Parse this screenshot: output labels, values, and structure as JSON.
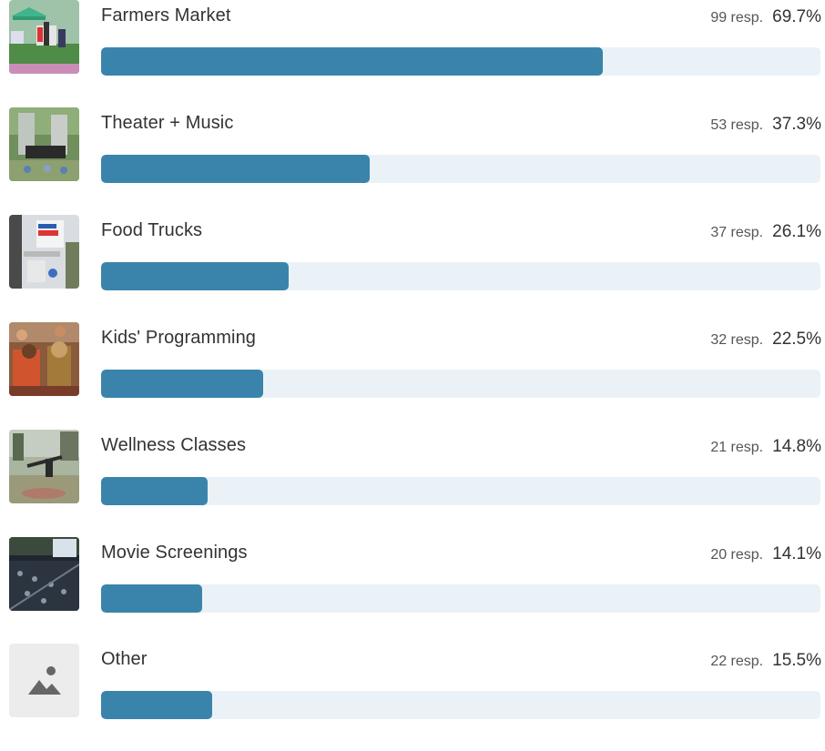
{
  "colors": {
    "bar_fill": "#3a84ac",
    "bar_track": "#ebf2f7",
    "text": "#333333",
    "muted_text": "#555555",
    "placeholder_bg": "#ececec",
    "placeholder_icon": "#666666"
  },
  "results": {
    "items": [
      {
        "label": "Farmers Market",
        "responses": "99 resp.",
        "percent": "69.7%",
        "value": 69.7,
        "thumb_icon": "farmers-market-photo-icon"
      },
      {
        "label": "Theater + Music",
        "responses": "53 resp.",
        "percent": "37.3%",
        "value": 37.3,
        "thumb_icon": "theater-music-photo-icon"
      },
      {
        "label": "Food Trucks",
        "responses": "37 resp.",
        "percent": "26.1%",
        "value": 26.1,
        "thumb_icon": "food-trucks-photo-icon"
      },
      {
        "label": "Kids' Programming",
        "responses": "32 resp.",
        "percent": "22.5%",
        "value": 22.5,
        "thumb_icon": "kids-programming-photo-icon"
      },
      {
        "label": "Wellness Classes",
        "responses": "21 resp.",
        "percent": "14.8%",
        "value": 14.8,
        "thumb_icon": "wellness-classes-photo-icon"
      },
      {
        "label": "Movie Screenings",
        "responses": "20 resp.",
        "percent": "14.1%",
        "value": 14.1,
        "thumb_icon": "movie-screenings-photo-icon"
      },
      {
        "label": "Other",
        "responses": "22 resp.",
        "percent": "15.5%",
        "value": 15.5,
        "thumb_icon": "image-placeholder-icon"
      }
    ]
  }
}
